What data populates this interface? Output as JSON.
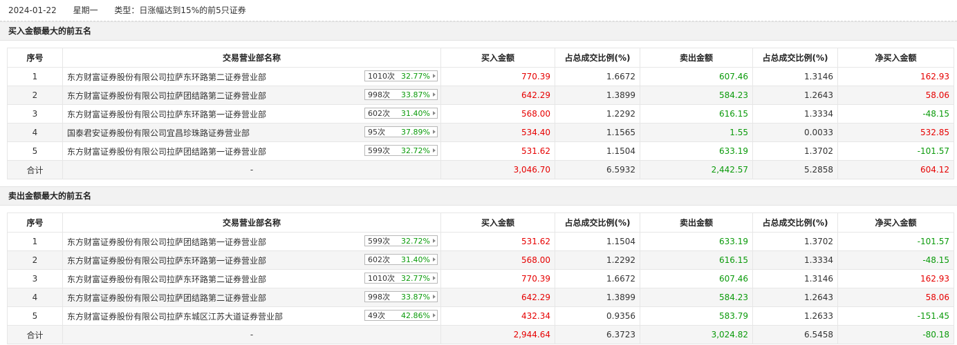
{
  "header": {
    "date": "2024-01-22",
    "weekday": "星期一",
    "type": "类型：日涨幅达到15%的前5只证券"
  },
  "columns": [
    "序号",
    "交易营业部名称",
    "买入金额",
    "占总成交比例(%)",
    "卖出金额",
    "占总成交比例(%)",
    "净买入金额"
  ],
  "buy_section": {
    "title": "买入金额最大的前五名",
    "rows": [
      {
        "idx": "1",
        "name": "东方财富证券股份有限公司拉萨东环路第二证券营业部",
        "count": "1010次",
        "pct": "32.77%",
        "buy": "770.39",
        "buy_ratio": "1.6672",
        "sell": "607.46",
        "sell_ratio": "1.3146",
        "net": "162.93",
        "net_sign": "pos"
      },
      {
        "idx": "2",
        "name": "东方财富证券股份有限公司拉萨团结路第二证券营业部",
        "count": "998次",
        "pct": "33.87%",
        "buy": "642.29",
        "buy_ratio": "1.3899",
        "sell": "584.23",
        "sell_ratio": "1.2643",
        "net": "58.06",
        "net_sign": "pos"
      },
      {
        "idx": "3",
        "name": "东方财富证券股份有限公司拉萨东环路第一证券营业部",
        "count": "602次",
        "pct": "31.40%",
        "buy": "568.00",
        "buy_ratio": "1.2292",
        "sell": "616.15",
        "sell_ratio": "1.3334",
        "net": "-48.15",
        "net_sign": "neg"
      },
      {
        "idx": "4",
        "name": "国泰君安证券股份有限公司宜昌珍珠路证券营业部",
        "count": "95次",
        "pct": "37.89%",
        "buy": "534.40",
        "buy_ratio": "1.1565",
        "sell": "1.55",
        "sell_ratio": "0.0033",
        "net": "532.85",
        "net_sign": "pos"
      },
      {
        "idx": "5",
        "name": "东方财富证券股份有限公司拉萨团结路第一证券营业部",
        "count": "599次",
        "pct": "32.72%",
        "buy": "531.62",
        "buy_ratio": "1.1504",
        "sell": "633.19",
        "sell_ratio": "1.3702",
        "net": "-101.57",
        "net_sign": "neg"
      }
    ],
    "total": {
      "label": "合计",
      "name": "-",
      "buy": "3,046.70",
      "buy_ratio": "6.5932",
      "sell": "2,442.57",
      "sell_ratio": "5.2858",
      "net": "604.12",
      "net_sign": "pos"
    }
  },
  "sell_section": {
    "title": "卖出金额最大的前五名",
    "rows": [
      {
        "idx": "1",
        "name": "东方财富证券股份有限公司拉萨团结路第一证券营业部",
        "count": "599次",
        "pct": "32.72%",
        "buy": "531.62",
        "buy_ratio": "1.1504",
        "sell": "633.19",
        "sell_ratio": "1.3702",
        "net": "-101.57",
        "net_sign": "neg"
      },
      {
        "idx": "2",
        "name": "东方财富证券股份有限公司拉萨东环路第一证券营业部",
        "count": "602次",
        "pct": "31.40%",
        "buy": "568.00",
        "buy_ratio": "1.2292",
        "sell": "616.15",
        "sell_ratio": "1.3334",
        "net": "-48.15",
        "net_sign": "neg"
      },
      {
        "idx": "3",
        "name": "东方财富证券股份有限公司拉萨东环路第二证券营业部",
        "count": "1010次",
        "pct": "32.77%",
        "buy": "770.39",
        "buy_ratio": "1.6672",
        "sell": "607.46",
        "sell_ratio": "1.3146",
        "net": "162.93",
        "net_sign": "pos"
      },
      {
        "idx": "4",
        "name": "东方财富证券股份有限公司拉萨团结路第二证券营业部",
        "count": "998次",
        "pct": "33.87%",
        "buy": "642.29",
        "buy_ratio": "1.3899",
        "sell": "584.23",
        "sell_ratio": "1.2643",
        "net": "58.06",
        "net_sign": "pos"
      },
      {
        "idx": "5",
        "name": "东方财富证券股份有限公司拉萨东城区江苏大道证券营业部",
        "count": "49次",
        "pct": "42.86%",
        "buy": "432.34",
        "buy_ratio": "0.9356",
        "sell": "583.79",
        "sell_ratio": "1.2633",
        "net": "-151.45",
        "net_sign": "neg"
      }
    ],
    "total": {
      "label": "合计",
      "name": "-",
      "buy": "2,944.64",
      "buy_ratio": "6.3723",
      "sell": "3,024.82",
      "sell_ratio": "6.5458",
      "net": "-80.18",
      "net_sign": "neg"
    }
  },
  "colors": {
    "up": "#e60000",
    "down": "#0a9a0a"
  }
}
